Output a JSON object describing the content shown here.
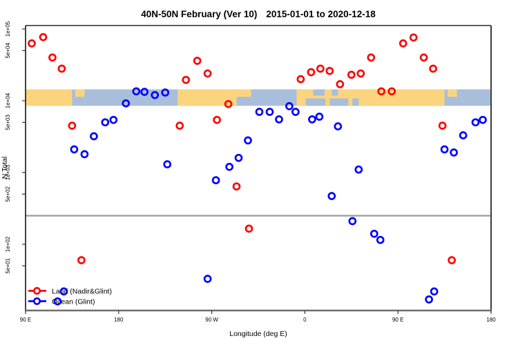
{
  "chart_data": {
    "type": "scatter",
    "title": {
      "main": "40N-50N February (Ver 10)",
      "dates": "2015-01-01 to 2020-12-18"
    },
    "xlabel": "Longitude (deg E)",
    "ylabel": "N Total",
    "x_axis": {
      "note": "wrapped longitude axis, 450 deg span starting at 90E going east",
      "range_deg": [
        90,
        540
      ],
      "ticks_deg": [
        90,
        180,
        270,
        360,
        450,
        540
      ],
      "tick_labels": [
        "90 E",
        "180",
        "90 W",
        "0",
        "90 E",
        "180"
      ]
    },
    "y_axis": {
      "scale": "log10",
      "range": [
        10,
        112000
      ],
      "tick_values": [
        100000,
        50000,
        10000,
        5000,
        1000,
        500,
        100,
        50
      ],
      "tick_labels": [
        "1e+05",
        "5e+04",
        "1e+04",
        "5e+03",
        "1e+03",
        "5e+02",
        "1e+02",
        "5e+01"
      ]
    },
    "threshold_line": {
      "value": 250,
      "color": "#9a9a9a"
    },
    "map_band": {
      "value_top": 14400,
      "value_bottom": 8500,
      "land_color": "#FBD47E",
      "ocean_color": "#A9BEDB",
      "base_range_deg": [
        90,
        540
      ],
      "land_segments_deg": [
        [
          90,
          135
        ],
        [
          237,
          294
        ],
        [
          352,
          495
        ]
      ],
      "land_patches_top_deg": [
        [
          138,
          147
        ],
        [
          294,
          308
        ],
        [
          498,
          507
        ]
      ],
      "ocean_patches_top_deg": [
        [
          368,
          379
        ],
        [
          386,
          392
        ]
      ],
      "ocean_patches_bottom_deg": [
        [
          361,
          380
        ],
        [
          384,
          402
        ],
        [
          406,
          412
        ]
      ]
    },
    "series": [
      {
        "name": "Land (Nadir&Glint)",
        "color": "#FF0000",
        "points": [
          [
            96,
            63000
          ],
          [
            107,
            77000
          ],
          [
            116,
            40000
          ],
          [
            125,
            28000
          ],
          [
            135,
            4500
          ],
          [
            144,
            60
          ],
          [
            239,
            4500
          ],
          [
            245,
            19500
          ],
          [
            256,
            36000
          ],
          [
            266,
            24000
          ],
          [
            275,
            5400
          ],
          [
            286,
            9000
          ],
          [
            294,
            640
          ],
          [
            306,
            165
          ],
          [
            356,
            20000
          ],
          [
            366,
            25000
          ],
          [
            375,
            28000
          ],
          [
            384,
            26000
          ],
          [
            394,
            17000
          ],
          [
            405,
            23000
          ],
          [
            414,
            24000
          ],
          [
            424,
            40000
          ],
          [
            434,
            13500
          ],
          [
            444,
            13500
          ],
          [
            455,
            63000
          ],
          [
            465,
            76000
          ],
          [
            475,
            40000
          ],
          [
            484,
            28000
          ],
          [
            493,
            4500
          ],
          [
            502,
            60
          ]
        ]
      },
      {
        "name": "Ocean (Glint)",
        "color": "#0000FF",
        "points": [
          [
            121,
            16
          ],
          [
            127,
            22
          ],
          [
            137,
            2100
          ],
          [
            147,
            1800
          ],
          [
            156,
            3200
          ],
          [
            167,
            5000
          ],
          [
            175,
            5400
          ],
          [
            187,
            9200
          ],
          [
            197,
            13500
          ],
          [
            205,
            13300
          ],
          [
            215,
            12000
          ],
          [
            225,
            13000
          ],
          [
            227,
            1300
          ],
          [
            266,
            33
          ],
          [
            274,
            780
          ],
          [
            287,
            1200
          ],
          [
            296,
            1600
          ],
          [
            305,
            2800
          ],
          [
            316,
            7000
          ],
          [
            326,
            7000
          ],
          [
            335,
            5500
          ],
          [
            345,
            8400
          ],
          [
            351,
            7000
          ],
          [
            367,
            5500
          ],
          [
            374,
            6000
          ],
          [
            386,
            470
          ],
          [
            392,
            4400
          ],
          [
            406,
            210
          ],
          [
            412,
            1100
          ],
          [
            427,
            140
          ],
          [
            433,
            115
          ],
          [
            480,
            17
          ],
          [
            485,
            22
          ],
          [
            495,
            2100
          ],
          [
            504,
            1900
          ],
          [
            513,
            3300
          ],
          [
            525,
            5000
          ],
          [
            532,
            5400
          ]
        ]
      }
    ],
    "legend": {
      "position": "bottom-left"
    }
  }
}
